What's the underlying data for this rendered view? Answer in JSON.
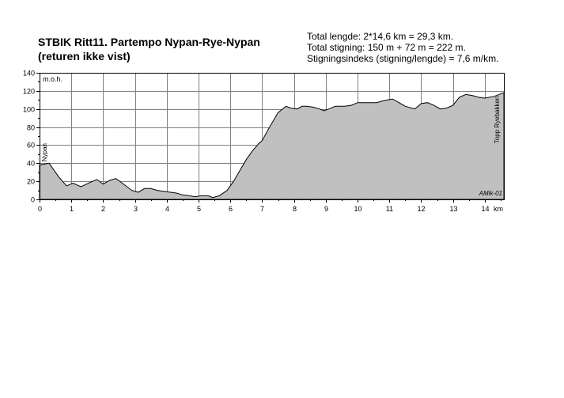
{
  "title_lines": [
    "STBIK Ritt11. Partempo Nypan-Rye-Nypan",
    "(returen ikke vist)"
  ],
  "info_lines": [
    "Total lengde: 2*14,6 km = 29,3 km.",
    "Total stigning:  150 m  + 72 m = 222 m.",
    "Stigningsindeks (stigning/lengde) = 7,6 m/km."
  ],
  "colors": {
    "fill": "#c0c0c0",
    "line": "#000000",
    "grid": "#808080",
    "background": "#ffffff"
  },
  "chart_data": {
    "type": "area",
    "ylabel": "m.o.h.",
    "xlabel": "km",
    "xlim": [
      0,
      14.6
    ],
    "ylim": [
      0,
      140
    ],
    "x_ticks": [
      "0",
      "1",
      "2",
      "3",
      "4",
      "5",
      "6",
      "7",
      "8",
      "9",
      "10",
      "11",
      "12",
      "13",
      "14"
    ],
    "y_ticks": [
      "0",
      "20",
      "40",
      "60",
      "80",
      "100",
      "120",
      "140"
    ],
    "grid": true,
    "annotations": {
      "start": "Nypan",
      "end": "Topp Ryebakken",
      "credit": "AMik-01"
    },
    "x": [
      0,
      0.3,
      0.6,
      0.85,
      1.05,
      1.3,
      1.6,
      1.8,
      2.0,
      2.2,
      2.4,
      2.6,
      2.9,
      3.1,
      3.3,
      3.5,
      3.7,
      3.9,
      4.1,
      4.3,
      4.5,
      4.7,
      4.9,
      5.1,
      5.3,
      5.45,
      5.65,
      5.9,
      6.1,
      6.3,
      6.5,
      6.7,
      6.9,
      7.0,
      7.2,
      7.5,
      7.75,
      7.9,
      8.1,
      8.25,
      8.4,
      8.6,
      8.8,
      8.95,
      9.1,
      9.3,
      9.6,
      9.8,
      10.0,
      10.3,
      10.6,
      10.8,
      11.1,
      11.3,
      11.5,
      11.8,
      12.0,
      12.2,
      12.4,
      12.6,
      12.8,
      13.0,
      13.2,
      13.4,
      13.6,
      13.8,
      14.0,
      14.3,
      14.6
    ],
    "values": [
      38,
      40,
      25,
      15,
      18,
      14,
      19,
      22,
      17,
      21,
      23,
      18,
      10,
      8,
      12,
      12,
      10,
      9,
      8,
      7,
      5,
      4,
      3,
      4,
      4,
      2,
      4,
      10,
      20,
      32,
      44,
      54,
      62,
      65,
      78,
      96,
      103,
      101,
      100,
      103,
      103,
      102,
      100,
      98,
      100,
      103,
      103,
      104,
      107,
      107,
      107,
      109,
      111,
      107,
      103,
      100,
      106,
      107,
      104,
      100,
      101,
      104,
      113,
      116,
      115,
      113,
      112,
      114,
      118
    ]
  }
}
